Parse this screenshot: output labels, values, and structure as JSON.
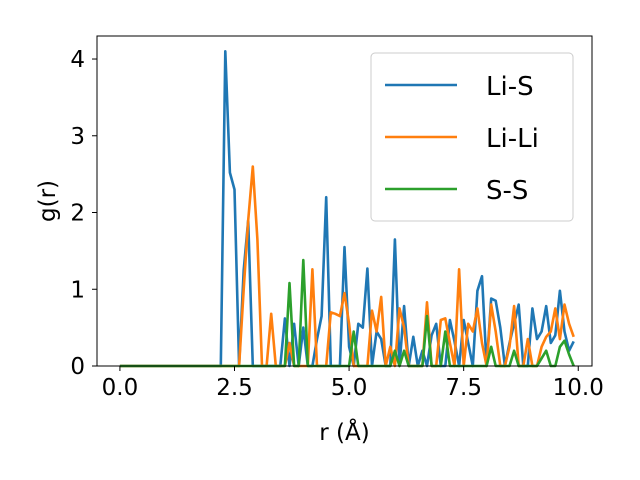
{
  "chart_data": {
    "type": "line",
    "xlabel": "r (Å)",
    "ylabel": "g(r)",
    "xlim": [
      -0.5,
      10.3
    ],
    "ylim": [
      0,
      4.3
    ],
    "xticks": [
      0.0,
      2.5,
      5.0,
      7.5,
      10.0
    ],
    "xtick_labels": [
      "0.0",
      "2.5",
      "5.0",
      "7.5",
      "10.0"
    ],
    "yticks": [
      0,
      1,
      2,
      3,
      4
    ],
    "ytick_labels": [
      "0",
      "1",
      "2",
      "3",
      "4"
    ],
    "legend_position": "top-right",
    "grid": false,
    "series": [
      {
        "name": "Li-S",
        "color": "#1f77b4",
        "x": [
          0.0,
          2.2,
          2.3,
          2.4,
          2.5,
          2.6,
          2.7,
          2.8,
          2.9,
          3.0,
          3.1,
          3.2,
          3.3,
          3.4,
          3.5,
          3.6,
          3.7,
          3.8,
          3.9,
          4.0,
          4.1,
          4.2,
          4.3,
          4.4,
          4.5,
          4.6,
          4.7,
          4.8,
          4.9,
          5.0,
          5.1,
          5.2,
          5.3,
          5.4,
          5.5,
          5.6,
          5.7,
          5.8,
          5.9,
          6.0,
          6.1,
          6.2,
          6.3,
          6.4,
          6.5,
          6.6,
          6.7,
          6.8,
          6.9,
          7.0,
          7.1,
          7.2,
          7.3,
          7.4,
          7.5,
          7.6,
          7.7,
          7.8,
          7.9,
          8.0,
          8.1,
          8.2,
          8.3,
          8.4,
          8.5,
          8.6,
          8.7,
          8.8,
          8.9,
          9.0,
          9.1,
          9.2,
          9.3,
          9.4,
          9.5,
          9.6,
          9.7,
          9.8,
          9.9
        ],
        "y": [
          0.0,
          0.0,
          4.1,
          2.52,
          2.3,
          0.0,
          1.25,
          1.9,
          0.0,
          0.0,
          0.0,
          0.0,
          0.0,
          0.0,
          0.0,
          0.62,
          0.0,
          0.55,
          0.0,
          0.5,
          0.0,
          0.0,
          0.35,
          0.65,
          2.2,
          0.0,
          0.0,
          0.0,
          1.55,
          0.25,
          0.0,
          0.55,
          0.5,
          1.27,
          0.0,
          0.45,
          0.35,
          0.0,
          0.0,
          1.65,
          0.0,
          0.78,
          0.0,
          0.38,
          0.0,
          0.2,
          0.0,
          0.4,
          0.55,
          0.0,
          0.0,
          0.6,
          0.32,
          0.0,
          0.6,
          0.3,
          0.0,
          0.98,
          1.17,
          0.0,
          0.88,
          0.85,
          0.5,
          0.0,
          0.3,
          0.55,
          0.8,
          0.0,
          0.0,
          0.75,
          0.35,
          0.45,
          0.78,
          0.3,
          0.4,
          0.98,
          0.45,
          0.2,
          0.32
        ]
      },
      {
        "name": "Li-Li",
        "color": "#ff7f0e",
        "x": [
          0.0,
          2.6,
          2.7,
          2.8,
          2.9,
          3.0,
          3.1,
          3.2,
          3.3,
          3.4,
          3.5,
          3.6,
          3.7,
          3.8,
          3.9,
          4.0,
          4.1,
          4.2,
          4.3,
          4.4,
          4.5,
          4.6,
          4.7,
          4.8,
          4.9,
          5.0,
          5.1,
          5.2,
          5.3,
          5.4,
          5.5,
          5.6,
          5.7,
          5.8,
          5.9,
          6.0,
          6.1,
          6.2,
          6.3,
          6.4,
          6.5,
          6.6,
          6.7,
          6.8,
          6.9,
          7.0,
          7.1,
          7.2,
          7.3,
          7.4,
          7.5,
          7.6,
          7.7,
          7.8,
          7.9,
          8.0,
          8.1,
          8.2,
          8.3,
          8.4,
          8.5,
          8.6,
          8.7,
          8.8,
          8.9,
          9.0,
          9.1,
          9.2,
          9.3,
          9.4,
          9.5,
          9.6,
          9.7,
          9.8,
          9.9
        ],
        "y": [
          0.0,
          0.0,
          1.0,
          1.9,
          2.6,
          1.65,
          0.0,
          0.0,
          0.68,
          0.0,
          0.0,
          0.0,
          0.3,
          0.0,
          0.0,
          0.0,
          0.0,
          1.26,
          0.0,
          0.0,
          0.0,
          0.7,
          0.68,
          0.65,
          0.95,
          0.55,
          0.0,
          0.0,
          0.0,
          0.0,
          0.72,
          0.45,
          0.9,
          0.0,
          0.25,
          0.0,
          0.75,
          0.5,
          0.0,
          0.0,
          0.0,
          0.0,
          0.83,
          0.0,
          0.0,
          0.6,
          0.62,
          0.3,
          0.0,
          1.26,
          0.0,
          0.55,
          0.45,
          0.75,
          0.3,
          0.0,
          0.8,
          0.45,
          0.0,
          0.0,
          0.25,
          0.78,
          0.0,
          0.0,
          0.35,
          0.0,
          0.0,
          0.25,
          0.38,
          0.45,
          0.75,
          0.35,
          0.8,
          0.55,
          0.38
        ]
      },
      {
        "name": "S-S",
        "color": "#2ca02c",
        "x": [
          0.0,
          3.5,
          3.6,
          3.7,
          3.8,
          3.9,
          4.0,
          4.1,
          4.2,
          4.3,
          4.4,
          4.5,
          4.6,
          4.7,
          4.8,
          4.9,
          5.0,
          5.1,
          5.2,
          5.3,
          5.4,
          5.5,
          5.6,
          5.7,
          5.8,
          5.9,
          6.0,
          6.1,
          6.2,
          6.3,
          6.4,
          6.5,
          6.6,
          6.7,
          6.8,
          6.9,
          7.0,
          7.1,
          7.2,
          7.3,
          7.4,
          7.5,
          7.6,
          7.7,
          7.8,
          7.9,
          8.0,
          8.1,
          8.2,
          8.3,
          8.4,
          8.5,
          8.6,
          8.7,
          8.8,
          8.9,
          9.0,
          9.1,
          9.2,
          9.3,
          9.4,
          9.5,
          9.6,
          9.7,
          9.8,
          9.9
        ],
        "y": [
          0.0,
          0.0,
          0.0,
          1.08,
          0.0,
          0.0,
          1.38,
          0.0,
          0.0,
          0.0,
          0.0,
          0.0,
          0.0,
          0.0,
          0.0,
          0.0,
          0.0,
          0.45,
          0.0,
          0.0,
          0.0,
          0.0,
          0.0,
          0.0,
          0.0,
          0.0,
          0.2,
          0.0,
          0.2,
          0.0,
          0.0,
          0.0,
          0.0,
          0.65,
          0.0,
          0.0,
          0.0,
          0.45,
          0.0,
          0.0,
          0.0,
          0.0,
          0.0,
          0.0,
          0.0,
          0.0,
          0.0,
          0.25,
          0.0,
          0.0,
          0.0,
          0.0,
          0.2,
          0.0,
          0.0,
          0.0,
          0.0,
          0.0,
          0.1,
          0.2,
          0.0,
          0.0,
          0.25,
          0.33,
          0.15,
          0.0
        ]
      }
    ]
  }
}
